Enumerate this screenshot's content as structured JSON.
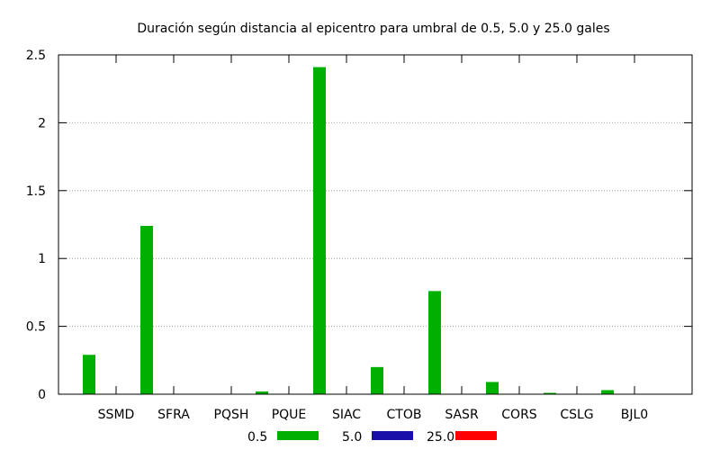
{
  "chart_data": {
    "type": "bar",
    "title": "Duración según distancia al epicentro para umbral de 0.5, 5.0 y 25.0 gales",
    "categories": [
      "SSMD",
      "SFRA",
      "PQSH",
      "PQUE",
      "SIAC",
      "CTOB",
      "SASR",
      "CORS",
      "CSLG",
      "BJL0"
    ],
    "series": [
      {
        "name": "0.5",
        "color": "#00b000",
        "values": [
          0.29,
          1.24,
          0.0,
          0.02,
          2.41,
          0.2,
          0.76,
          0.09,
          0.01,
          0.03
        ]
      },
      {
        "name": "5.0",
        "color": "#1a0fa8",
        "values": [
          0,
          0,
          0,
          0,
          0,
          0,
          0,
          0,
          0,
          0
        ]
      },
      {
        "name": "25.0",
        "color": "#ff0000",
        "values": [
          0,
          0,
          0,
          0,
          0,
          0,
          0,
          0,
          0,
          0
        ]
      }
    ],
    "ylim": [
      0,
      2.5
    ],
    "yticks": [
      "0",
      "0.5",
      "1",
      "1.5",
      "2",
      "2.5"
    ],
    "ytick_values": [
      0,
      0.5,
      1,
      1.5,
      2,
      2.5
    ],
    "grid": true,
    "legend_position": "bottom"
  }
}
